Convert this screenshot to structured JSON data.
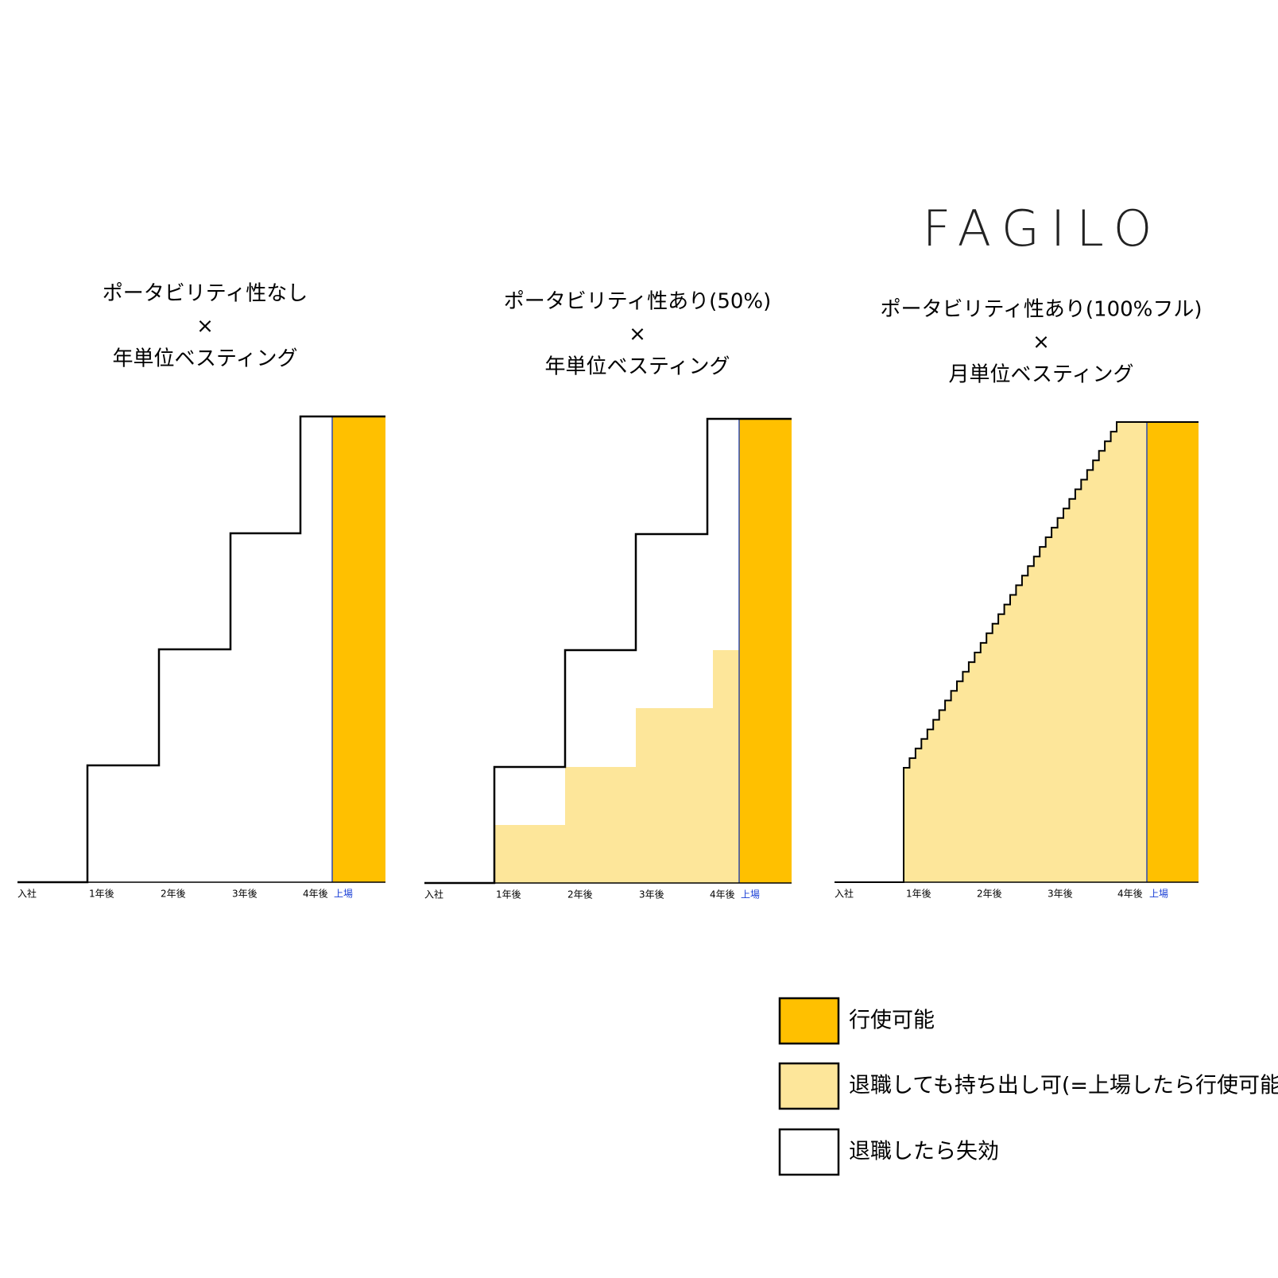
{
  "logo": "FAGILO",
  "panels": [
    {
      "title_lines": [
        "ポータビリティ性なし",
        "×",
        "年単位ベスティング"
      ],
      "axis_labels": [
        "入社",
        "1年後",
        "2年後",
        "3年後",
        "4年後",
        "上場"
      ]
    },
    {
      "title_lines": [
        "ポータビリティ性あり(50%)",
        "×",
        "年単位ベスティング"
      ],
      "axis_labels": [
        "入社",
        "1年後",
        "2年後",
        "3年後",
        "4年後",
        "上場"
      ]
    },
    {
      "title_lines": [
        "ポータビリティ性あり(100%フル)",
        "×",
        "月単位ベスティング"
      ],
      "axis_labels": [
        "入社",
        "1年後",
        "2年後",
        "3年後",
        "4年後",
        "上場"
      ]
    }
  ],
  "legend": [
    "行使可能",
    "退職しても持ち出し可(=上場したら行使可能)",
    "退職したら失効"
  ]
}
